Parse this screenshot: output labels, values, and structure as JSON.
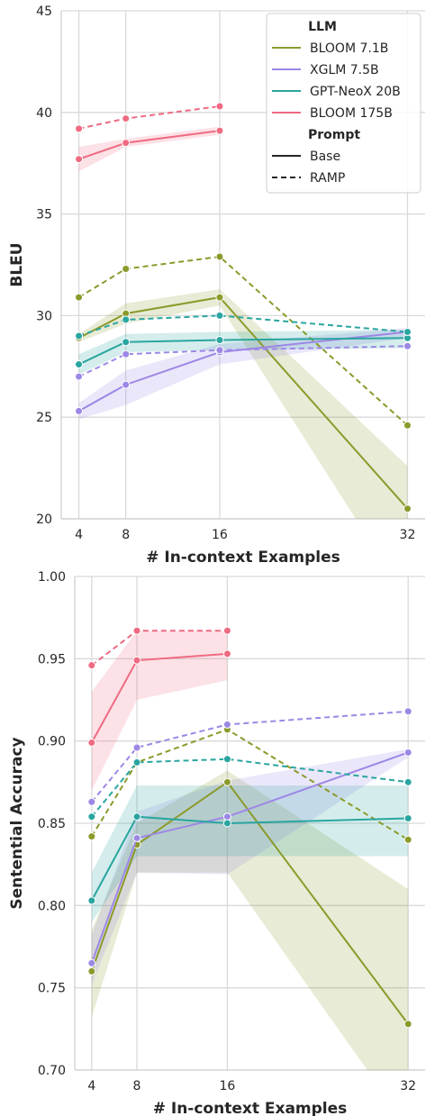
{
  "chart_data": [
    {
      "type": "line",
      "xlabel": "# In-context Examples",
      "ylabel": "BLEU",
      "x": [
        4,
        8,
        16,
        32
      ],
      "xticks": [
        4,
        8,
        16,
        32
      ],
      "xlim": [
        2.5,
        33.5
      ],
      "ylim": [
        20,
        45
      ],
      "yticks": [
        20,
        25,
        30,
        35,
        40,
        45
      ],
      "grid": true,
      "legend": {
        "placement": "top-right",
        "title_llm": "LLM",
        "title_prompt": "Prompt",
        "llm_entries": [
          "BLOOM 7.1B",
          "XGLM 7.5B",
          "GPT-NeoX 20B",
          "BLOOM 175B"
        ],
        "prompt_entries": [
          "Base",
          "RAMP"
        ]
      },
      "series": [
        {
          "name": "BLOOM 7.1B",
          "prompt": "Base",
          "color": "#8c9a2b",
          "values": [
            28.9,
            30.1,
            30.9,
            20.5
          ],
          "ci_low": [
            28.7,
            29.6,
            30.5,
            16.0
          ],
          "ci_high": [
            29.1,
            30.6,
            31.3,
            22.6
          ]
        },
        {
          "name": "BLOOM 7.1B",
          "prompt": "RAMP",
          "color": "#8c9a2b",
          "values": [
            30.9,
            32.3,
            32.9,
            24.6
          ]
        },
        {
          "name": "XGLM 7.5B",
          "prompt": "Base",
          "color": "#9d87e6",
          "values": [
            25.3,
            26.6,
            28.2,
            29.2
          ],
          "ci_low": [
            24.9,
            25.6,
            27.6,
            28.9
          ],
          "ci_high": [
            25.7,
            27.3,
            28.6,
            29.4
          ]
        },
        {
          "name": "XGLM 7.5B",
          "prompt": "RAMP",
          "color": "#9d87e6",
          "values": [
            27.0,
            28.1,
            28.3,
            28.5
          ]
        },
        {
          "name": "GPT-NeoX 20B",
          "prompt": "Base",
          "color": "#2aa5a0",
          "values": [
            27.6,
            28.7,
            28.8,
            28.9
          ],
          "ci_low": [
            27.1,
            28.2,
            28.3,
            28.4
          ],
          "ci_high": [
            28.1,
            29.1,
            29.2,
            29.3
          ]
        },
        {
          "name": "GPT-NeoX 20B",
          "prompt": "RAMP",
          "color": "#2aa5a0",
          "values": [
            29.0,
            29.8,
            30.0,
            29.2
          ]
        },
        {
          "name": "BLOOM 175B",
          "prompt": "Base",
          "color": "#ee6b82",
          "values": [
            37.7,
            38.5,
            39.1,
            null
          ],
          "ci_low": [
            37.1,
            38.3,
            38.9,
            null
          ],
          "ci_high": [
            38.3,
            38.7,
            39.3,
            null
          ]
        },
        {
          "name": "BLOOM 175B",
          "prompt": "RAMP",
          "color": "#ee6b82",
          "values": [
            39.2,
            39.7,
            40.3,
            null
          ]
        }
      ]
    },
    {
      "type": "line",
      "xlabel": "# In-context Examples",
      "ylabel": "Sentential Accuracy",
      "x": [
        4,
        8,
        16,
        32
      ],
      "xticks": [
        4,
        8,
        16,
        32
      ],
      "xlim": [
        2.5,
        33.5
      ],
      "ylim": [
        0.7,
        1.0
      ],
      "yticks": [
        0.7,
        0.75,
        0.8,
        0.85,
        0.9,
        0.95,
        1.0
      ],
      "grid": true,
      "series": [
        {
          "name": "BLOOM 7.1B",
          "prompt": "Base",
          "color": "#8c9a2b",
          "values": [
            0.76,
            0.837,
            0.875,
            0.728
          ],
          "ci_low": [
            0.732,
            0.82,
            0.82,
            0.665
          ],
          "ci_high": [
            0.785,
            0.85,
            0.882,
            0.81
          ]
        },
        {
          "name": "BLOOM 7.1B",
          "prompt": "RAMP",
          "color": "#8c9a2b",
          "values": [
            0.842,
            0.887,
            0.907,
            0.84
          ]
        },
        {
          "name": "XGLM 7.5B",
          "prompt": "Base",
          "color": "#9d87e6",
          "values": [
            0.765,
            0.841,
            0.854,
            0.893
          ],
          "ci_low": [
            0.752,
            0.82,
            0.819,
            0.89
          ],
          "ci_high": [
            0.782,
            0.857,
            0.876,
            0.895
          ]
        },
        {
          "name": "XGLM 7.5B",
          "prompt": "RAMP",
          "color": "#9d87e6",
          "values": [
            0.863,
            0.896,
            0.91,
            0.918
          ]
        },
        {
          "name": "GPT-NeoX 20B",
          "prompt": "Base",
          "color": "#2aa5a0",
          "values": [
            0.803,
            0.854,
            0.85,
            0.853
          ],
          "ci_low": [
            0.79,
            0.83,
            0.83,
            0.83
          ],
          "ci_high": [
            0.82,
            0.873,
            0.873,
            0.873
          ]
        },
        {
          "name": "GPT-NeoX 20B",
          "prompt": "RAMP",
          "color": "#2aa5a0",
          "values": [
            0.854,
            0.887,
            0.889,
            0.875
          ]
        },
        {
          "name": "BLOOM 175B",
          "prompt": "Base",
          "color": "#ee6b82",
          "values": [
            0.899,
            0.949,
            0.953,
            null
          ],
          "ci_low": [
            0.87,
            0.925,
            0.937,
            null
          ],
          "ci_high": [
            0.93,
            0.967,
            0.967,
            null
          ]
        },
        {
          "name": "BLOOM 175B",
          "prompt": "RAMP",
          "color": "#ee6b82",
          "values": [
            0.946,
            0.967,
            0.967,
            null
          ]
        }
      ]
    }
  ]
}
